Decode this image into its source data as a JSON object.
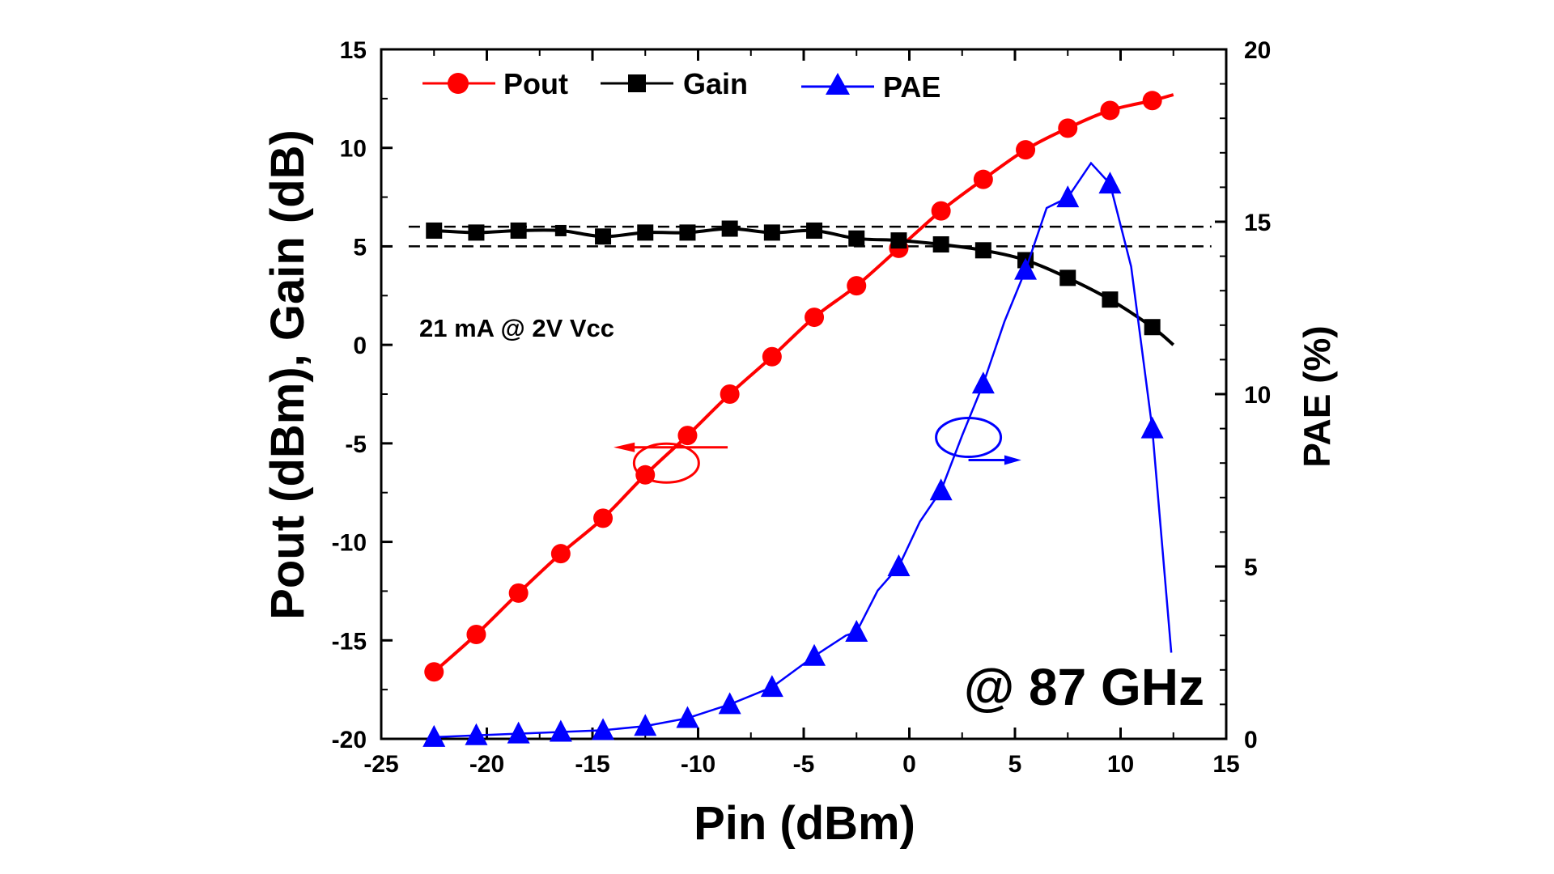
{
  "chart_data": {
    "type": "line",
    "xlabel": "Pin (dBm)",
    "ylabel_left": "Pout (dBm), Gain (dB)",
    "ylabel_right": "PAE (%)",
    "xlim": [
      -25,
      15
    ],
    "ylim_left": [
      -20,
      15
    ],
    "ylim_right": [
      0,
      20
    ],
    "xticks": [
      -25,
      -20,
      -15,
      -10,
      -5,
      0,
      5,
      10,
      15
    ],
    "yticks_left": [
      -20,
      -15,
      -10,
      -5,
      0,
      5,
      10,
      15
    ],
    "yticks_right": [
      0,
      5,
      10,
      15,
      20
    ],
    "grid": false,
    "legend_placement": "top-left",
    "x": [
      -22.5,
      -20.5,
      -18.5,
      -16.5,
      -14.5,
      -12.5,
      -10.5,
      -8.5,
      -6.5,
      -4.5,
      -2.5,
      -0.5,
      1.5,
      3.5,
      5.5,
      7.5,
      9.5,
      11.5
    ],
    "series": [
      {
        "name": "Pout",
        "axis": "left",
        "color": "#ff0000",
        "marker": "circle",
        "values": [
          -16.6,
          -14.7,
          -12.6,
          -10.6,
          -8.8,
          -6.6,
          -4.6,
          -2.5,
          -0.6,
          1.4,
          3.0,
          4.9,
          6.8,
          8.4,
          9.9,
          11.0,
          11.9,
          12.4
        ],
        "line_end": [
          12.5,
          12.7
        ]
      },
      {
        "name": "Gain",
        "axis": "left",
        "color": "#000000",
        "marker": "square",
        "values": [
          5.8,
          5.7,
          5.8,
          5.8,
          5.5,
          5.7,
          5.7,
          5.9,
          5.7,
          5.8,
          5.4,
          5.3,
          5.1,
          4.8,
          4.3,
          3.4,
          2.3,
          0.9
        ],
        "line_end": [
          12.5,
          0.0
        ]
      },
      {
        "name": "PAE",
        "axis": "right",
        "color": "#0000ff",
        "marker": "triangle",
        "values": [
          0.05,
          0.1,
          0.15,
          0.2,
          0.25,
          0.37,
          0.6,
          1.0,
          1.5,
          2.4,
          3.1,
          5.0,
          7.2,
          10.3,
          13.6,
          15.7,
          16.1,
          9.0
        ],
        "line_trace": [
          [
            -22.5,
            0.05
          ],
          [
            -18.5,
            0.15
          ],
          [
            -14.5,
            0.25
          ],
          [
            -12.5,
            0.37
          ],
          [
            -10.5,
            0.6
          ],
          [
            -8.5,
            1.0
          ],
          [
            -6.5,
            1.5
          ],
          [
            -4.5,
            2.4
          ],
          [
            -3.0,
            3.0
          ],
          [
            -2.5,
            3.1
          ],
          [
            -1.5,
            4.3
          ],
          [
            -0.5,
            5.0
          ],
          [
            0.5,
            6.3
          ],
          [
            1.5,
            7.2
          ],
          [
            2.5,
            8.8
          ],
          [
            3.5,
            10.3
          ],
          [
            4.5,
            12.1
          ],
          [
            5.5,
            13.6
          ],
          [
            6.5,
            15.4
          ],
          [
            7.5,
            15.7
          ],
          [
            8.6,
            16.7
          ],
          [
            9.5,
            16.1
          ],
          [
            10.5,
            13.7
          ],
          [
            11.5,
            9.0
          ],
          [
            12.4,
            2.5
          ]
        ]
      }
    ],
    "reference_lines": [
      {
        "axis": "left",
        "y": 6,
        "style": "dashed",
        "x_range": [
          -23.7,
          14.3
        ]
      },
      {
        "axis": "left",
        "y": 5,
        "style": "dashed",
        "x_range": [
          -23.7,
          14.3
        ]
      }
    ],
    "annotations": {
      "bias": "21 mA @ 2V Vcc",
      "frequency": "@ 87 GHz"
    }
  }
}
